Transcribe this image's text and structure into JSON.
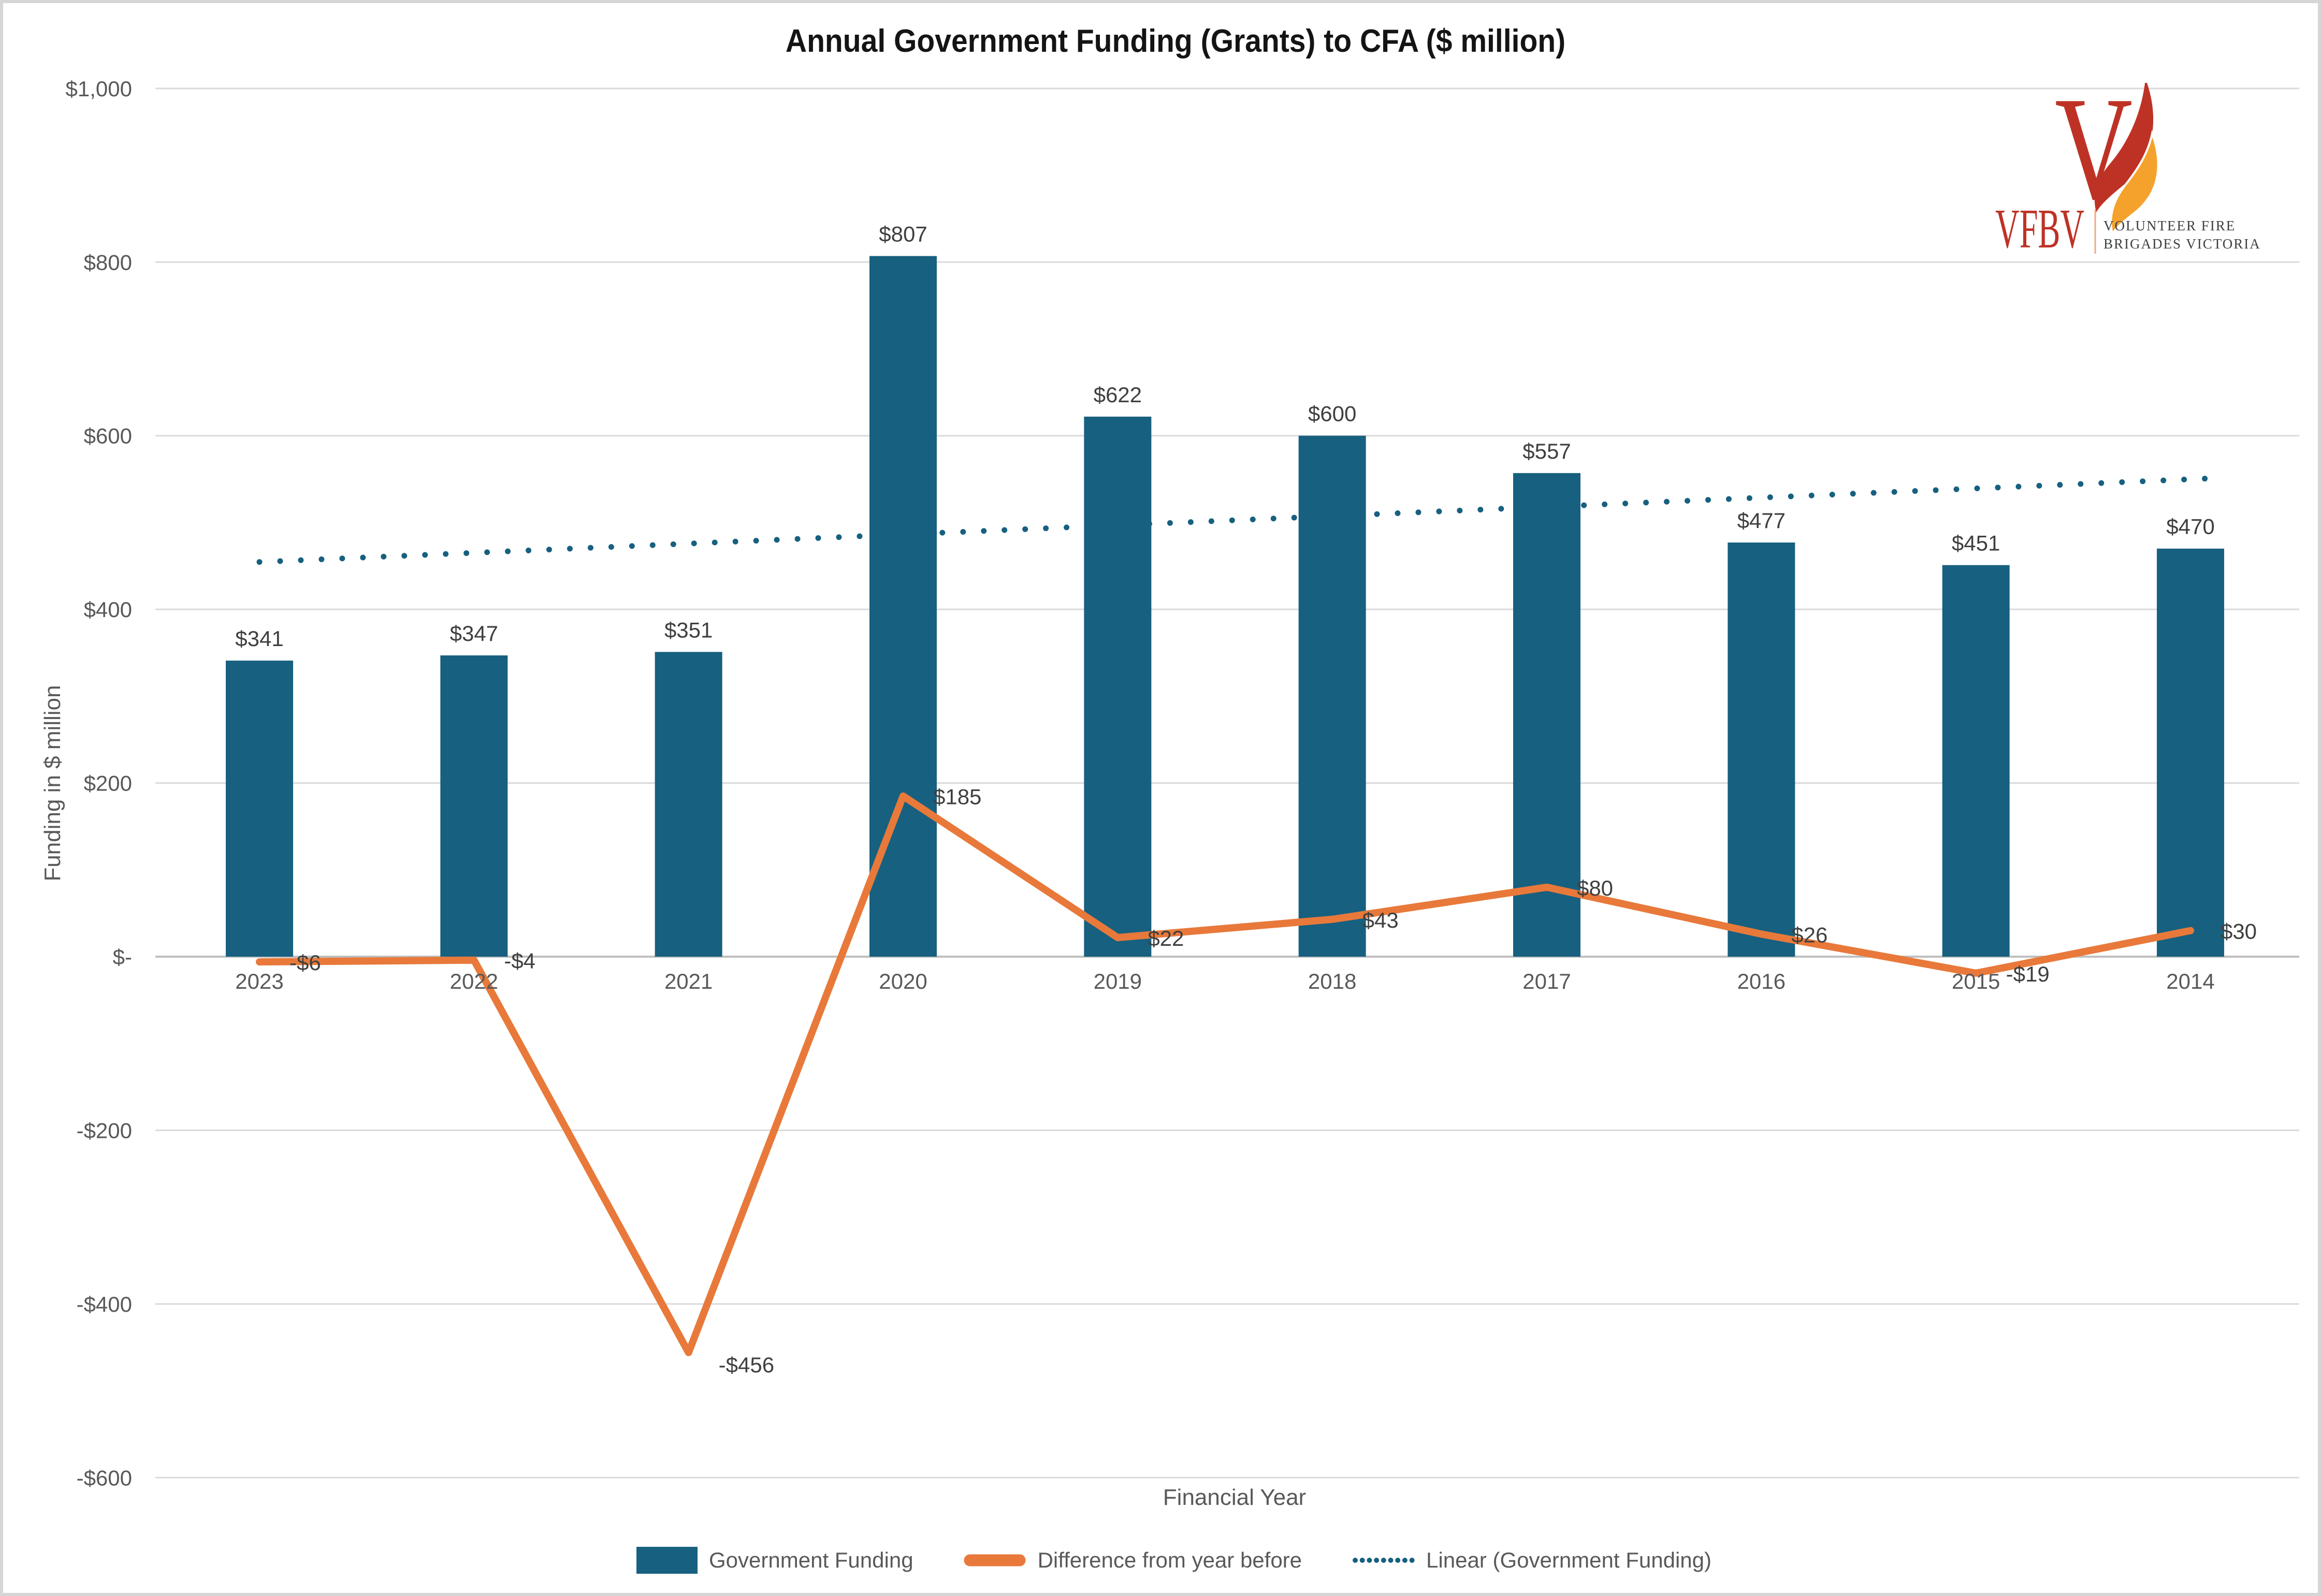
{
  "title": "Annual Government Funding (Grants) to CFA ($ million)",
  "logo": {
    "abbr": "VFBV",
    "initial": "V",
    "tagline1": "VOLUNTEER FIRE",
    "tagline2": "BRIGADES VICTORIA",
    "red": "#BE3226",
    "flame_orange": "#F5A22D",
    "divider_color": "#F0A984"
  },
  "chart_data": {
    "type": "bar",
    "title": "Annual Government Funding (Grants) to CFA ($ million)",
    "xlabel": "Financial Year",
    "ylabel": "Funding in $ million",
    "categories": [
      "2023",
      "2022",
      "2021",
      "2020",
      "2019",
      "2018",
      "2017",
      "2016",
      "2015",
      "2014"
    ],
    "series": [
      {
        "name": "Government Funding",
        "type": "bar",
        "color": "#17607F",
        "values": [
          341,
          347,
          351,
          807,
          622,
          600,
          557,
          477,
          451,
          470
        ],
        "labels": [
          "$341",
          "$347",
          "$351",
          "$807",
          "$622",
          "$600",
          "$557",
          "$477",
          "$451",
          "$470"
        ]
      },
      {
        "name": "Difference from year before",
        "type": "line",
        "color": "#E8793A",
        "values": [
          -6,
          -4,
          -456,
          185,
          22,
          43,
          80,
          26,
          -19,
          30
        ],
        "labels": [
          "-$6",
          "-$4",
          "-$456",
          "$185",
          "$22",
          "$43",
          "$80",
          "$26",
          "-$19",
          "$30"
        ]
      },
      {
        "name": "Linear (Government Funding)",
        "type": "trendline",
        "color": "#17607F",
        "endpoint_values": [
          454.6,
          549.9
        ]
      }
    ],
    "ylim": [
      -600,
      1000
    ],
    "y_ticks": [
      1000,
      800,
      600,
      400,
      200,
      0,
      -200,
      -400,
      -600
    ],
    "y_tick_labels": [
      "$1,000",
      "$800",
      "$600",
      "$400",
      "$200",
      "$-",
      "-$200",
      "-$400",
      "-$600"
    ],
    "grid": true,
    "legend_position": "bottom",
    "gridline_color": "#DADADA",
    "axis_line_color": "#BFBFBF"
  }
}
